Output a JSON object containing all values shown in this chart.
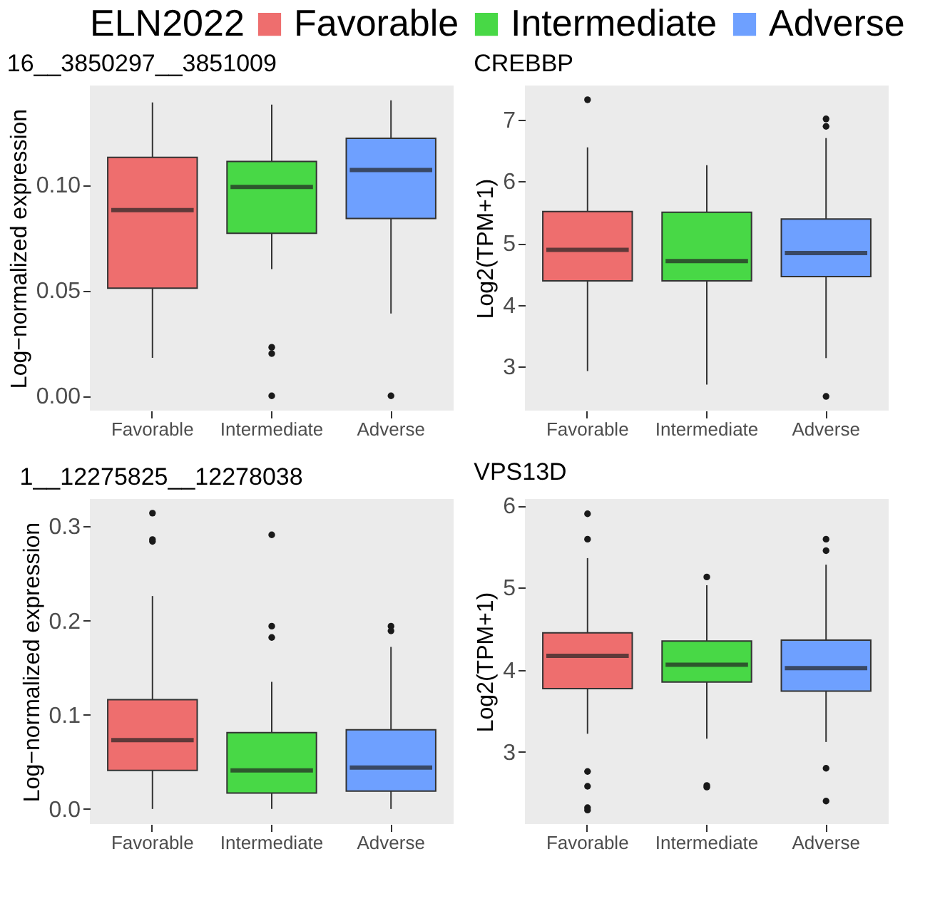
{
  "chart_data": [
    {
      "type": "box",
      "title": "16__3850297__3851009",
      "ylabel": "Log−normalized expression",
      "legend": "top",
      "legend_title": "ELN2022",
      "categories": [
        "Favorable",
        "Intermediate",
        "Adverse"
      ],
      "ylim": [
        -0.007,
        0.147
      ],
      "yticks": [
        {
          "value": 0,
          "label": "0.00"
        },
        {
          "value": 0.05,
          "label": "0.05"
        },
        {
          "value": 0.1,
          "label": "0.10"
        }
      ],
      "series": [
        {
          "name": "Favorable",
          "color": "#ee6e6e",
          "boxes": [
            {
              "low": 0.018,
              "q1": 0.051,
              "median": 0.088,
              "q3": 0.113,
              "high": 0.139
            },
            null,
            null
          ]
        },
        {
          "name": "Intermediate",
          "color": "#48d846",
          "boxes": [
            null,
            {
              "low": 0.06,
              "q1": 0.077,
              "median": 0.099,
              "q3": 0.111,
              "high": 0.138,
              "outliers": [
                0.023,
                0.02,
                0
              ]
            },
            null
          ]
        },
        {
          "name": "Adverse",
          "color": "#6ea0ff",
          "boxes": [
            null,
            null,
            {
              "low": 0.039,
              "q1": 0.084,
              "median": 0.107,
              "q3": 0.122,
              "high": 0.14,
              "outliers": [
                0
              ]
            }
          ]
        }
      ]
    },
    {
      "type": "box",
      "title": "CREBBP",
      "ylabel": "Log2(TPM+1)",
      "categories": [
        "Favorable",
        "Intermediate",
        "Adverse"
      ],
      "ylim": [
        2.29,
        7.55
      ],
      "yticks": [
        3,
        4,
        5,
        6,
        7
      ],
      "series": [
        {
          "color": "#ee6e6e",
          "boxes": [
            {
              "low": 2.93,
              "q1": 4.39,
              "median": 4.89,
              "q3": 5.51,
              "high": 6.55,
              "outliers": [
                7.32
              ]
            },
            null,
            null
          ]
        },
        {
          "color": "#48d846",
          "boxes": [
            null,
            {
              "low": 2.71,
              "q1": 4.39,
              "median": 4.71,
              "q3": 5.5,
              "high": 6.26
            },
            null
          ]
        },
        {
          "color": "#6ea0ff",
          "boxes": [
            null,
            null,
            {
              "low": 3.14,
              "q1": 4.46,
              "median": 4.84,
              "q3": 5.39,
              "high": 6.7,
              "outliers": [
                7.01,
                6.89,
                2.52
              ]
            }
          ]
        }
      ]
    },
    {
      "type": "box",
      "title": "1__12275825__12278038",
      "ylabel": "Log−normalized expression",
      "categories": [
        "Favorable",
        "Intermediate",
        "Adverse"
      ],
      "ylim": [
        -0.016,
        0.329
      ],
      "yticks": [
        {
          "value": 0,
          "label": "0.0"
        },
        {
          "value": 0.1,
          "label": "0.1"
        },
        {
          "value": 0.2,
          "label": "0.2"
        },
        {
          "value": 0.3,
          "label": "0.3"
        }
      ],
      "series": [
        {
          "color": "#ee6e6e",
          "boxes": [
            {
              "low": 0,
              "q1": 0.041,
              "median": 0.073,
              "q3": 0.116,
              "high": 0.226,
              "outliers": [
                0.314,
                0.286,
                0.284
              ]
            },
            null,
            null
          ]
        },
        {
          "color": "#48d846",
          "boxes": [
            null,
            {
              "low": 0,
              "q1": 0.017,
              "median": 0.041,
              "q3": 0.081,
              "high": 0.135,
              "outliers": [
                0.291,
                0.194,
                0.182
              ]
            },
            null
          ]
        },
        {
          "color": "#6ea0ff",
          "boxes": [
            null,
            null,
            {
              "low": 0,
              "q1": 0.019,
              "median": 0.044,
              "q3": 0.084,
              "high": 0.172,
              "outliers": [
                0.194,
                0.189
              ]
            }
          ]
        }
      ]
    },
    {
      "type": "box",
      "title": "VPS13D",
      "ylabel": "Log2(TPM+1)",
      "categories": [
        "Favorable",
        "Intermediate",
        "Adverse"
      ],
      "ylim": [
        2.12,
        6.08
      ],
      "yticks": [
        3,
        4,
        5,
        6
      ],
      "series": [
        {
          "color": "#ee6e6e",
          "boxes": [
            {
              "low": 3.22,
              "q1": 3.77,
              "median": 4.17,
              "q3": 4.45,
              "high": 5.36,
              "outliers": [
                5.9,
                5.59,
                2.76,
                2.58,
                2.32,
                2.29
              ]
            },
            null,
            null
          ]
        },
        {
          "color": "#48d846",
          "boxes": [
            null,
            {
              "low": 3.16,
              "q1": 3.85,
              "median": 4.06,
              "q3": 4.35,
              "high": 5.03,
              "outliers": [
                5.13,
                2.59,
                2.57
              ]
            },
            null
          ]
        },
        {
          "color": "#6ea0ff",
          "boxes": [
            null,
            null,
            {
              "low": 3.12,
              "q1": 3.74,
              "median": 4.02,
              "q3": 4.36,
              "high": 5.28,
              "outliers": [
                5.59,
                5.45,
                2.8,
                2.4
              ]
            }
          ]
        }
      ]
    }
  ]
}
